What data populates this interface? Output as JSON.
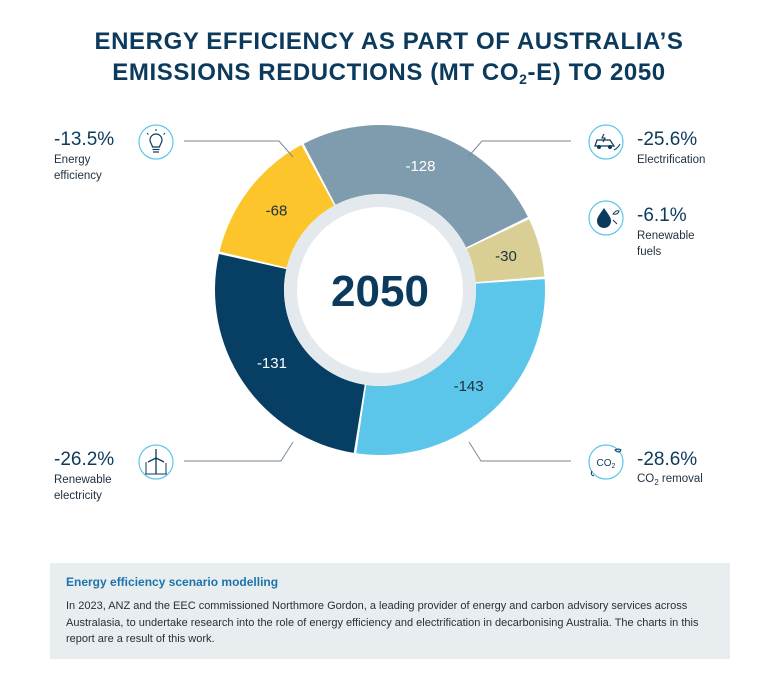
{
  "title": {
    "line1": "ENERGY EFFICIENCY AS PART OF AUSTRALIA’S",
    "line2_pre": "EMISSIONS REDUCTIONS (MT CO",
    "line2_sub": "2",
    "line2_post": "-E) TO 2050"
  },
  "chart_data": {
    "type": "pie",
    "variant": "donut",
    "center_label": "2050",
    "slices": [
      {
        "key": "electrification",
        "value": -128,
        "display": "-128",
        "percent": "-25.6%",
        "label": "Electrification",
        "color": "#7f9cae",
        "label_color": "#ffffff",
        "icon": "electric-car-icon"
      },
      {
        "key": "renewable-fuels",
        "value": -30,
        "display": "-30",
        "percent": "-6.1%",
        "label": "Renewable fuels",
        "color": "#d9cf94",
        "label_color": "#1e3040",
        "icon": "fuel-drop-icon"
      },
      {
        "key": "co2-removal",
        "value": -143,
        "display": "-143",
        "percent": "-28.6%",
        "label": "CO2 removal",
        "color": "#5cc6ea",
        "label_color": "#1e3040",
        "icon": "co2-leaf-icon"
      },
      {
        "key": "renewable-electricity",
        "value": -131,
        "display": "-131",
        "percent": "-26.2%",
        "label": "Renewable electricity",
        "color": "#073e63",
        "label_color": "#ffffff",
        "icon": "wind-turbine-icon"
      },
      {
        "key": "energy-efficiency",
        "value": -68,
        "display": "-68",
        "percent": "-13.5%",
        "label": "Energy efficiency",
        "color": "#fbc52b",
        "label_color": "#1e3040",
        "icon": "light-bulb-icon"
      }
    ]
  },
  "info_box": {
    "title": "Energy efficiency scenario modelling",
    "text": "In 2023, ANZ and the EEC commissioned Northmore Gordon, a leading provider of energy and carbon advisory services across Australasia, to undertake research into the role of energy efficiency and electrification in decarbonising Australia. The charts in this report are a result of this work."
  }
}
